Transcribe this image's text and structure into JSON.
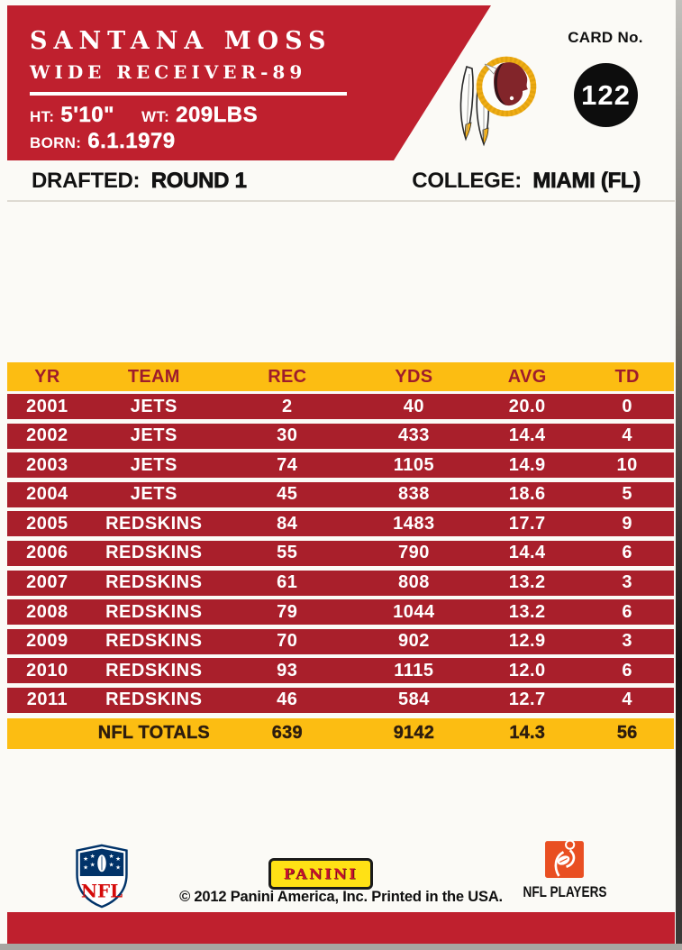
{
  "colors": {
    "banner_red": "#bf202e",
    "row_red": "#a91f2b",
    "gold": "#fcbd12",
    "maroon_text": "#9e1c2c",
    "totals_text": "#2d1d0e",
    "panini_yellow": "#ffe115",
    "panini_red": "#c8102e",
    "nfl_blue": "#013369",
    "nfl_red": "#d50a0a",
    "players_orange": "#e94f22",
    "logo_gold": "#f0ad15",
    "logo_burgundy": "#82252a"
  },
  "header": {
    "player_name": "SANTANA MOSS",
    "position": "WIDE RECEIVER-89",
    "ht_label": "HT:",
    "ht_value": "5'10\"",
    "wt_label": "WT:",
    "wt_value": "209LBS",
    "born_label": "BORN:",
    "born_value": "6.1.1979",
    "card_no_label": "CARD No.",
    "card_no": "122"
  },
  "info_band": {
    "drafted_label": "DRAFTED:",
    "drafted_value": "ROUND 1",
    "college_label": "COLLEGE:",
    "college_value": "MIAMI (FL)"
  },
  "stats_table": {
    "headers": [
      "YR",
      "TEAM",
      "REC",
      "YDS",
      "AVG",
      "TD"
    ],
    "rows": [
      [
        "2001",
        "JETS",
        "2",
        "40",
        "20.0",
        "0"
      ],
      [
        "2002",
        "JETS",
        "30",
        "433",
        "14.4",
        "4"
      ],
      [
        "2003",
        "JETS",
        "74",
        "1105",
        "14.9",
        "10"
      ],
      [
        "2004",
        "JETS",
        "45",
        "838",
        "18.6",
        "5"
      ],
      [
        "2005",
        "REDSKINS",
        "84",
        "1483",
        "17.7",
        "9"
      ],
      [
        "2006",
        "REDSKINS",
        "55",
        "790",
        "14.4",
        "6"
      ],
      [
        "2007",
        "REDSKINS",
        "61",
        "808",
        "13.2",
        "3"
      ],
      [
        "2008",
        "REDSKINS",
        "79",
        "1044",
        "13.2",
        "6"
      ],
      [
        "2009",
        "REDSKINS",
        "70",
        "902",
        "12.9",
        "3"
      ],
      [
        "2010",
        "REDSKINS",
        "93",
        "1115",
        "12.0",
        "6"
      ],
      [
        "2011",
        "REDSKINS",
        "46",
        "584",
        "12.7",
        "4"
      ]
    ],
    "totals": [
      "",
      "NFL TOTALS",
      "639",
      "9142",
      "14.3",
      "56"
    ]
  },
  "footer": {
    "nfl_logo_text": "NFL",
    "panini_text": "PANINI",
    "copyright": "© 2012 Panini America, Inc. Printed in the USA.",
    "nfl_players_text": "NFL PLAYERS"
  }
}
